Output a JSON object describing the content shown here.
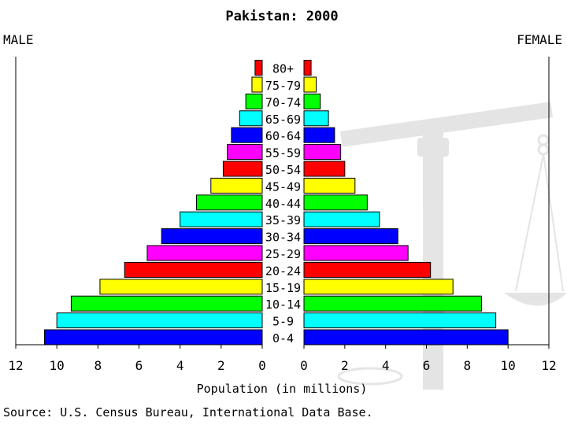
{
  "chart_data": {
    "type": "bar",
    "title": "Pakistan: 2000",
    "left_label": "MALE",
    "right_label": "FEMALE",
    "xlabel": "Population (in millions)",
    "source": "Source: U.S. Census Bureau, International Data Base.",
    "xlim": [
      0,
      12
    ],
    "x_ticks": [
      "12",
      "10",
      "8",
      "6",
      "4",
      "2",
      "0",
      "0",
      "2",
      "4",
      "6",
      "8",
      "10",
      "12"
    ],
    "categories": [
      "0-4",
      "5-9",
      "10-14",
      "15-19",
      "20-24",
      "25-29",
      "30-34",
      "35-39",
      "40-44",
      "45-49",
      "50-54",
      "55-59",
      "60-64",
      "65-69",
      "70-74",
      "75-79",
      "80+"
    ],
    "bar_colors": [
      "#0000ff",
      "#00ffff",
      "#00ff00",
      "#ffff00",
      "#ff0000",
      "#ff00ff",
      "#0000ff",
      "#00ffff",
      "#00ff00",
      "#ffff00",
      "#ff0000",
      "#ff00ff",
      "#0000ff",
      "#00ffff",
      "#00ff00",
      "#ffff00",
      "#ff0000"
    ],
    "series": [
      {
        "name": "MALE",
        "values": [
          10.6,
          10.0,
          9.3,
          7.9,
          6.7,
          5.6,
          4.9,
          4.0,
          3.2,
          2.5,
          1.9,
          1.7,
          1.5,
          1.1,
          0.8,
          0.5,
          0.35
        ]
      },
      {
        "name": "FEMALE",
        "values": [
          10.0,
          9.4,
          8.7,
          7.3,
          6.2,
          5.1,
          4.6,
          3.7,
          3.1,
          2.5,
          2.0,
          1.8,
          1.5,
          1.2,
          0.8,
          0.6,
          0.35
        ]
      }
    ],
    "grid": false,
    "legend": "none"
  }
}
